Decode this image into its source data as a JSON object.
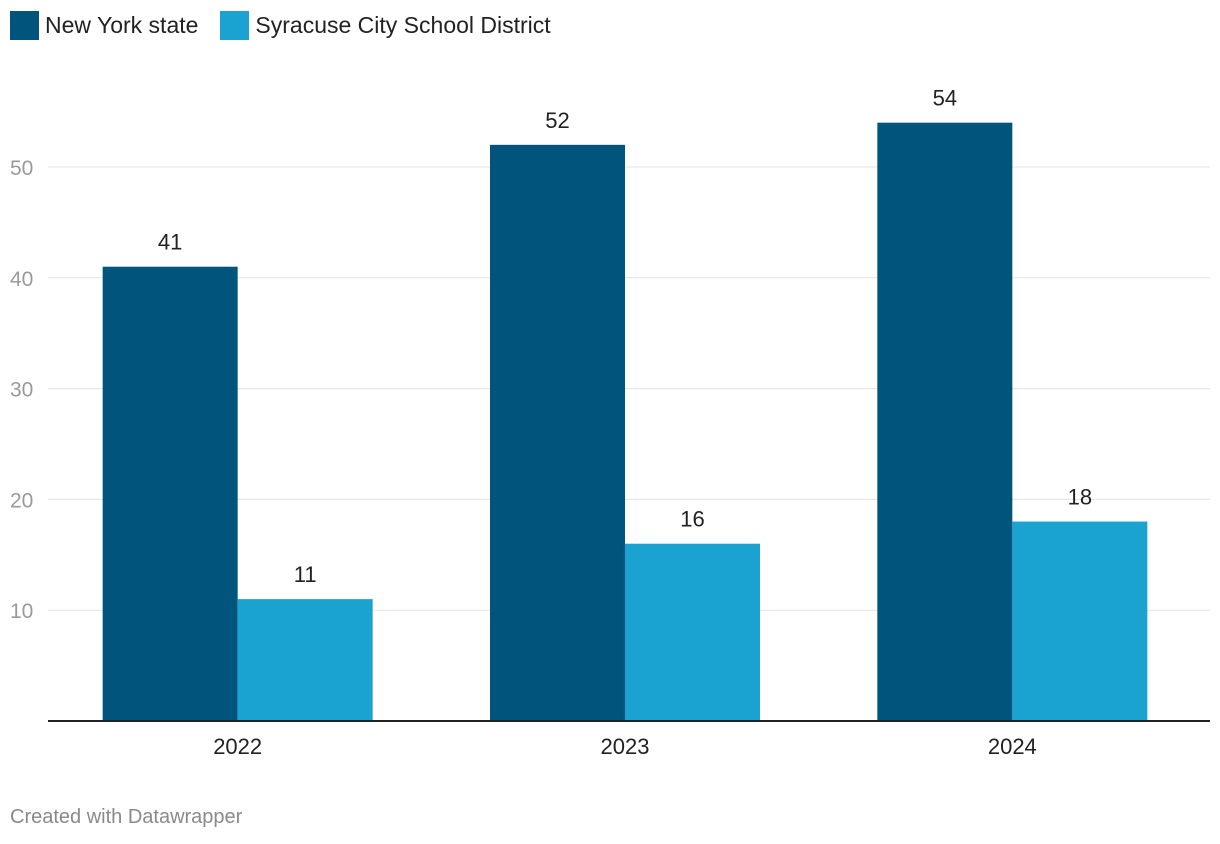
{
  "chart_data": {
    "type": "bar",
    "title": "",
    "xlabel": "",
    "ylabel": "",
    "categories": [
      "2022",
      "2023",
      "2024"
    ],
    "series": [
      {
        "name": "New York state",
        "color": "#01547b",
        "values": [
          41,
          52,
          54
        ]
      },
      {
        "name": "Syracuse City School District",
        "color": "#1aa3d0",
        "values": [
          11,
          16,
          18
        ]
      }
    ],
    "yticks": [
      10,
      20,
      30,
      40,
      50
    ],
    "ylim": [
      0,
      58
    ],
    "grid": true,
    "legend_position": "top-left",
    "show_data_labels": true
  },
  "footer": {
    "credit": "Created with Datawrapper"
  }
}
